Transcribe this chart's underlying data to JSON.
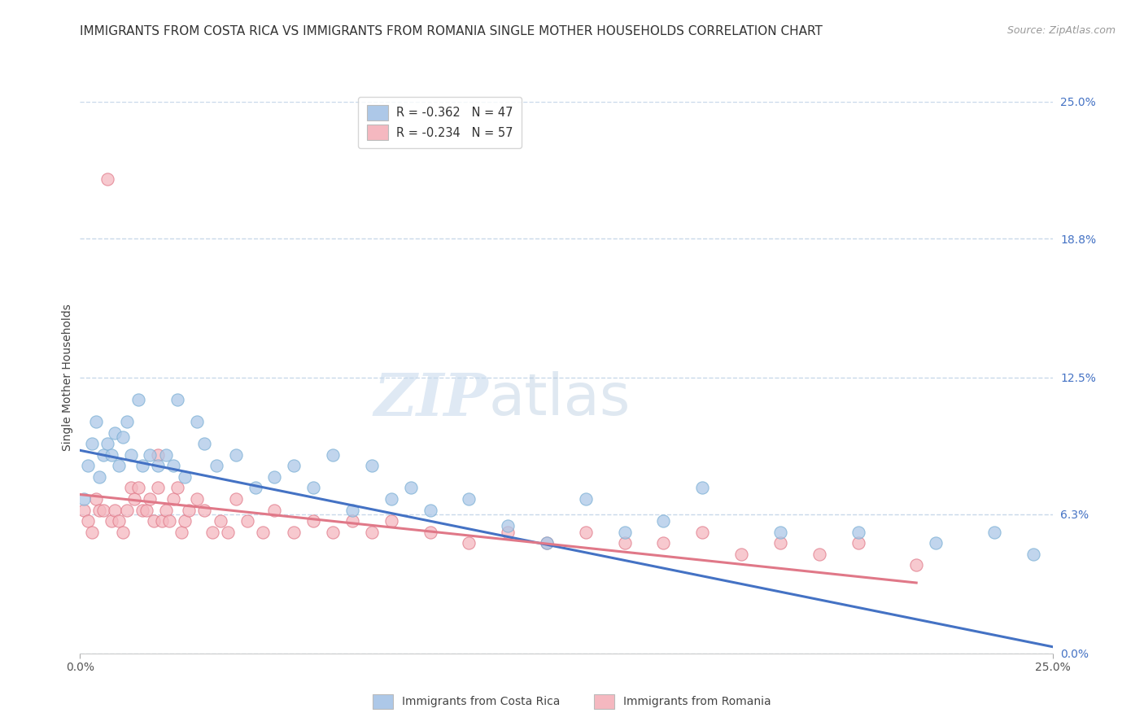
{
  "title": "IMMIGRANTS FROM COSTA RICA VS IMMIGRANTS FROM ROMANIA SINGLE MOTHER HOUSEHOLDS CORRELATION CHART",
  "source": "Source: ZipAtlas.com",
  "ylabel": "Single Mother Households",
  "ytick_values": [
    0.0,
    6.3,
    12.5,
    18.8,
    25.0
  ],
  "xlim": [
    0.0,
    25.0
  ],
  "ylim": [
    0.0,
    25.0
  ],
  "legend_entries": [
    {
      "label": "R = -0.362   N = 47",
      "color": "#adc8e8"
    },
    {
      "label": "R = -0.234   N = 57",
      "color": "#f5b8c0"
    }
  ],
  "legend_bottom": [
    {
      "label": "Immigrants from Costa Rica",
      "color": "#adc8e8"
    },
    {
      "label": "Immigrants from Romania",
      "color": "#f5b8c0"
    }
  ],
  "series_costa_rica": {
    "color": "#adc8e8",
    "edge_color": "#7aafd4",
    "R": -0.362,
    "N": 47,
    "x": [
      0.1,
      0.2,
      0.3,
      0.4,
      0.5,
      0.6,
      0.7,
      0.8,
      0.9,
      1.0,
      1.1,
      1.2,
      1.3,
      1.5,
      1.6,
      1.8,
      2.0,
      2.2,
      2.4,
      2.5,
      2.7,
      3.0,
      3.2,
      3.5,
      4.0,
      4.5,
      5.0,
      5.5,
      6.0,
      6.5,
      7.0,
      7.5,
      8.0,
      8.5,
      9.0,
      10.0,
      11.0,
      12.0,
      13.0,
      14.0,
      15.0,
      16.0,
      18.0,
      20.0,
      22.0,
      23.5,
      24.5
    ],
    "y": [
      7.0,
      8.5,
      9.5,
      10.5,
      8.0,
      9.0,
      9.5,
      9.0,
      10.0,
      8.5,
      9.8,
      10.5,
      9.0,
      11.5,
      8.5,
      9.0,
      8.5,
      9.0,
      8.5,
      11.5,
      8.0,
      10.5,
      9.5,
      8.5,
      9.0,
      7.5,
      8.0,
      8.5,
      7.5,
      9.0,
      6.5,
      8.5,
      7.0,
      7.5,
      6.5,
      7.0,
      5.8,
      5.0,
      7.0,
      5.5,
      6.0,
      7.5,
      5.5,
      5.5,
      5.0,
      5.5,
      4.5
    ]
  },
  "series_romania": {
    "color": "#f5b8c0",
    "edge_color": "#e07888",
    "R": -0.234,
    "N": 57,
    "x": [
      0.1,
      0.2,
      0.3,
      0.4,
      0.5,
      0.6,
      0.7,
      0.8,
      0.9,
      1.0,
      1.1,
      1.2,
      1.3,
      1.4,
      1.5,
      1.6,
      1.7,
      1.8,
      1.9,
      2.0,
      2.1,
      2.2,
      2.3,
      2.4,
      2.5,
      2.6,
      2.7,
      2.8,
      3.0,
      3.2,
      3.4,
      3.6,
      3.8,
      4.0,
      4.3,
      4.7,
      5.0,
      5.5,
      6.0,
      6.5,
      7.0,
      7.5,
      8.0,
      9.0,
      10.0,
      11.0,
      12.0,
      13.0,
      14.0,
      15.0,
      16.0,
      17.0,
      18.0,
      19.0,
      20.0,
      21.5,
      2.0
    ],
    "y": [
      6.5,
      6.0,
      5.5,
      7.0,
      6.5,
      6.5,
      21.5,
      6.0,
      6.5,
      6.0,
      5.5,
      6.5,
      7.5,
      7.0,
      7.5,
      6.5,
      6.5,
      7.0,
      6.0,
      7.5,
      6.0,
      6.5,
      6.0,
      7.0,
      7.5,
      5.5,
      6.0,
      6.5,
      7.0,
      6.5,
      5.5,
      6.0,
      5.5,
      7.0,
      6.0,
      5.5,
      6.5,
      5.5,
      6.0,
      5.5,
      6.0,
      5.5,
      6.0,
      5.5,
      5.0,
      5.5,
      5.0,
      5.5,
      5.0,
      5.0,
      5.5,
      4.5,
      5.0,
      4.5,
      5.0,
      4.0,
      9.0
    ]
  },
  "trendline_costa_rica": {
    "color": "#4472c4",
    "x_start": 0.0,
    "x_end": 25.0,
    "y_start": 9.2,
    "y_end": 0.3,
    "linestyle": "-"
  },
  "trendline_romania": {
    "color": "#e07888",
    "x_start": 0.0,
    "x_end": 21.5,
    "y_start": 7.2,
    "y_end": 3.2,
    "linestyle": "-"
  },
  "watermark_zip": "ZIP",
  "watermark_atlas": "atlas",
  "background_color": "#ffffff",
  "grid_color": "#c8d8ea",
  "title_fontsize": 11,
  "axis_label_fontsize": 10,
  "tick_fontsize": 10,
  "right_tick_color": "#4472c4"
}
